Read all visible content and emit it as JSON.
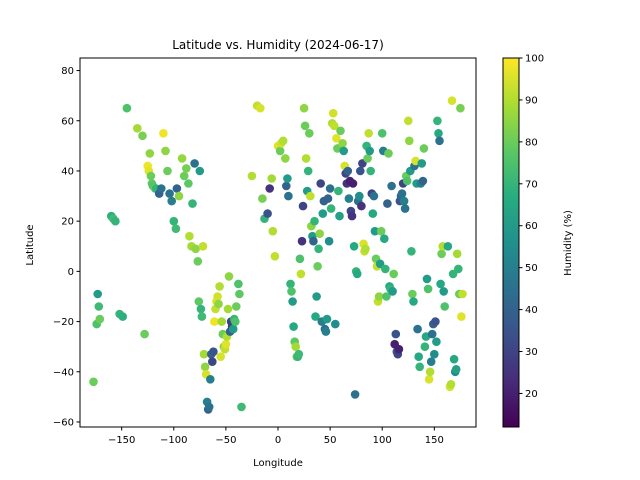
{
  "chart_data": {
    "type": "scatter",
    "title": "Latitude vs. Humidity (2024-06-17)",
    "xlabel": "Longitude",
    "ylabel": "Latitude",
    "xlim": [
      -190,
      190
    ],
    "ylim": [
      -62,
      85
    ],
    "xticks": [
      -150,
      -100,
      -50,
      0,
      50,
      100,
      150
    ],
    "yticks": [
      -60,
      -40,
      -20,
      0,
      20,
      40,
      60,
      80
    ],
    "colorbar": {
      "label": "Humidity (%)",
      "min": 12,
      "max": 100,
      "ticks": [
        20,
        30,
        40,
        50,
        60,
        70,
        80,
        90,
        100
      ],
      "colormap": "viridis"
    },
    "marker": "circle",
    "points": [
      [
        -177,
        -44,
        80
      ],
      [
        -174,
        -21,
        75
      ],
      [
        -173,
        -9,
        60
      ],
      [
        -172,
        -14,
        72
      ],
      [
        -171,
        -19,
        80
      ],
      [
        -160,
        22,
        68
      ],
      [
        -158,
        21,
        72
      ],
      [
        -156,
        20,
        70
      ],
      [
        -152,
        -17,
        70
      ],
      [
        -149,
        -18,
        68
      ],
      [
        -145,
        65,
        75
      ],
      [
        -135,
        57,
        88
      ],
      [
        -130,
        54,
        82
      ],
      [
        -128,
        -25,
        80
      ],
      [
        -125,
        42,
        98
      ],
      [
        -124,
        40,
        96
      ],
      [
        -123,
        47,
        85
      ],
      [
        -122,
        38,
        80
      ],
      [
        -121,
        35,
        78
      ],
      [
        -120,
        34,
        76
      ],
      [
        -118,
        33,
        80
      ],
      [
        -117,
        33,
        70
      ],
      [
        -114,
        31,
        40
      ],
      [
        -112,
        33,
        45
      ],
      [
        -110,
        55,
        98
      ],
      [
        -108,
        48,
        85
      ],
      [
        -106,
        40,
        80
      ],
      [
        -104,
        31,
        45
      ],
      [
        -102,
        28,
        50
      ],
      [
        -100,
        20,
        70
      ],
      [
        -98,
        17,
        72
      ],
      [
        -97,
        33,
        40
      ],
      [
        -95,
        30,
        85
      ],
      [
        -92,
        45,
        86
      ],
      [
        -90,
        38,
        80
      ],
      [
        -88,
        41,
        82
      ],
      [
        -86,
        35,
        78
      ],
      [
        -85,
        14,
        90
      ],
      [
        -83,
        10,
        88
      ],
      [
        -82,
        27,
        70
      ],
      [
        -80,
        43,
        45
      ],
      [
        -79,
        9,
        85
      ],
      [
        -77,
        4,
        80
      ],
      [
        -76,
        -12,
        78
      ],
      [
        -75,
        40,
        60
      ],
      [
        -74,
        -15,
        70
      ],
      [
        -73,
        -18,
        72
      ],
      [
        -72,
        10,
        92
      ],
      [
        -71,
        -33,
        88
      ],
      [
        -70,
        -38,
        85
      ],
      [
        -69,
        -41,
        95
      ],
      [
        -68,
        -52,
        50
      ],
      [
        -67,
        -55,
        40
      ],
      [
        -66,
        -54,
        45
      ],
      [
        -65,
        -43,
        50
      ],
      [
        -64,
        -33,
        40
      ],
      [
        -63,
        -36,
        30
      ],
      [
        -62,
        -32,
        35
      ],
      [
        -61,
        -20,
        98
      ],
      [
        -60,
        -15,
        92
      ],
      [
        -59,
        -12,
        95
      ],
      [
        -58,
        -10,
        94
      ],
      [
        -57,
        -13,
        85
      ],
      [
        -56,
        -6,
        90
      ],
      [
        -55,
        -34,
        95
      ],
      [
        -54,
        -20,
        88
      ],
      [
        -53,
        -25,
        80
      ],
      [
        -52,
        -30,
        85
      ],
      [
        -51,
        -31,
        92
      ],
      [
        -50,
        -29,
        96
      ],
      [
        -49,
        -26,
        90
      ],
      [
        -48,
        -15,
        88
      ],
      [
        -47,
        -2,
        85
      ],
      [
        -46,
        -24,
        40
      ],
      [
        -45,
        -20,
        30
      ],
      [
        -44,
        -22,
        28
      ],
      [
        -43,
        -23,
        60
      ],
      [
        -42,
        -19,
        70
      ],
      [
        -41,
        -20,
        75
      ],
      [
        -40,
        -14,
        80
      ],
      [
        -38,
        -5,
        75
      ],
      [
        -37,
        -9,
        78
      ],
      [
        -35,
        -54,
        72
      ],
      [
        -25,
        38,
        90
      ],
      [
        -20,
        66,
        92
      ],
      [
        -17,
        65,
        95
      ],
      [
        -15,
        29,
        82
      ],
      [
        -13,
        21,
        70
      ],
      [
        -10,
        23,
        35
      ],
      [
        -8,
        33,
        25
      ],
      [
        -6,
        37,
        88
      ],
      [
        -5,
        16,
        90
      ],
      [
        -3,
        6,
        92
      ],
      [
        0,
        50,
        96
      ],
      [
        2,
        48,
        80
      ],
      [
        3,
        51,
        94
      ],
      [
        5,
        52,
        90
      ],
      [
        7,
        45,
        85
      ],
      [
        8,
        34,
        40
      ],
      [
        9,
        37,
        60
      ],
      [
        10,
        30,
        45
      ],
      [
        12,
        -5,
        70
      ],
      [
        13,
        -8,
        75
      ],
      [
        14,
        -12,
        60
      ],
      [
        15,
        -22,
        65
      ],
      [
        16,
        -28,
        78
      ],
      [
        17,
        -30,
        88
      ],
      [
        18,
        -34,
        80
      ],
      [
        19,
        -34,
        70
      ],
      [
        20,
        -33,
        72
      ],
      [
        21,
        5,
        75
      ],
      [
        22,
        -1,
        92
      ],
      [
        23,
        12,
        25
      ],
      [
        24,
        26,
        30
      ],
      [
        25,
        65,
        85
      ],
      [
        26,
        58,
        80
      ],
      [
        27,
        45,
        90
      ],
      [
        28,
        32,
        60
      ],
      [
        29,
        40,
        70
      ],
      [
        30,
        55,
        80
      ],
      [
        31,
        30,
        92
      ],
      [
        32,
        18,
        85
      ],
      [
        33,
        14,
        60
      ],
      [
        34,
        12,
        40
      ],
      [
        35,
        20,
        70
      ],
      [
        36,
        -18,
        65
      ],
      [
        37,
        -10,
        60
      ],
      [
        38,
        2,
        80
      ],
      [
        39,
        9,
        70
      ],
      [
        40,
        15,
        85
      ],
      [
        41,
        35,
        30
      ],
      [
        42,
        -20,
        50
      ],
      [
        43,
        23,
        60
      ],
      [
        44,
        28,
        40
      ],
      [
        45,
        -23,
        45
      ],
      [
        46,
        -24,
        50
      ],
      [
        47,
        -19,
        60
      ],
      [
        48,
        29,
        40
      ],
      [
        49,
        12,
        55
      ],
      [
        50,
        33,
        45
      ],
      [
        51,
        25,
        70
      ],
      [
        52,
        59,
        90
      ],
      [
        53,
        63,
        94
      ],
      [
        54,
        58,
        92
      ],
      [
        55,
        -21,
        55
      ],
      [
        56,
        53,
        96
      ],
      [
        57,
        49,
        80
      ],
      [
        58,
        32,
        70
      ],
      [
        59,
        22,
        62
      ],
      [
        60,
        56,
        80
      ],
      [
        62,
        51,
        85
      ],
      [
        63,
        48,
        60
      ],
      [
        64,
        42,
        95
      ],
      [
        65,
        39,
        30
      ],
      [
        66,
        35,
        25
      ],
      [
        67,
        40,
        40
      ],
      [
        68,
        29,
        50
      ],
      [
        69,
        36,
        20
      ],
      [
        70,
        24,
        30
      ],
      [
        71,
        22,
        25
      ],
      [
        72,
        35,
        20
      ],
      [
        73,
        10,
        65
      ],
      [
        74,
        -49,
        45
      ],
      [
        75,
        0,
        70
      ],
      [
        76,
        -1,
        65
      ],
      [
        77,
        28,
        45
      ],
      [
        78,
        30,
        55
      ],
      [
        79,
        40,
        35
      ],
      [
        80,
        26,
        25
      ],
      [
        81,
        43,
        30
      ],
      [
        82,
        11,
        95
      ],
      [
        83,
        8,
        92
      ],
      [
        84,
        9,
        90
      ],
      [
        85,
        50,
        70
      ],
      [
        86,
        45,
        80
      ],
      [
        87,
        55,
        92
      ],
      [
        88,
        48,
        60
      ],
      [
        89,
        40,
        70
      ],
      [
        90,
        31,
        30
      ],
      [
        91,
        23,
        65
      ],
      [
        92,
        30,
        45
      ],
      [
        93,
        16,
        60
      ],
      [
        94,
        5,
        80
      ],
      [
        95,
        2,
        92
      ],
      [
        96,
        -12,
        92
      ],
      [
        97,
        -10,
        85
      ],
      [
        98,
        3,
        60
      ],
      [
        99,
        16,
        80
      ],
      [
        100,
        55,
        75
      ],
      [
        101,
        48,
        50
      ],
      [
        102,
        13,
        65
      ],
      [
        103,
        1,
        70
      ],
      [
        104,
        -10,
        75
      ],
      [
        105,
        27,
        40
      ],
      [
        106,
        47,
        80
      ],
      [
        107,
        -6,
        65
      ],
      [
        108,
        -7,
        70
      ],
      [
        109,
        34,
        45
      ],
      [
        110,
        -8,
        60
      ],
      [
        111,
        -1,
        80
      ],
      [
        112,
        -29,
        20
      ],
      [
        113,
        -25,
        35
      ],
      [
        114,
        -32,
        35
      ],
      [
        115,
        -33,
        30
      ],
      [
        116,
        -31,
        20
      ],
      [
        117,
        28,
        35
      ],
      [
        118,
        30,
        40
      ],
      [
        119,
        31,
        45
      ],
      [
        120,
        35,
        30
      ],
      [
        121,
        28,
        50
      ],
      [
        122,
        25,
        45
      ],
      [
        123,
        38,
        80
      ],
      [
        124,
        36,
        75
      ],
      [
        125,
        60,
        92
      ],
      [
        126,
        52,
        85
      ],
      [
        127,
        40,
        60
      ],
      [
        128,
        8,
        70
      ],
      [
        129,
        -9,
        80
      ],
      [
        130,
        -12,
        65
      ],
      [
        131,
        42,
        45
      ],
      [
        132,
        44,
        95
      ],
      [
        133,
        35,
        60
      ],
      [
        134,
        -23,
        45
      ],
      [
        135,
        -34,
        65
      ],
      [
        136,
        -38,
        70
      ],
      [
        137,
        35,
        50
      ],
      [
        138,
        43,
        60
      ],
      [
        139,
        36,
        40
      ],
      [
        140,
        49,
        80
      ],
      [
        141,
        -30,
        70
      ],
      [
        142,
        -26,
        65
      ],
      [
        143,
        -3,
        60
      ],
      [
        144,
        -7,
        75
      ],
      [
        145,
        -43,
        95
      ],
      [
        146,
        -40,
        90
      ],
      [
        147,
        -36,
        50
      ],
      [
        148,
        -25,
        45
      ],
      [
        149,
        -21,
        40
      ],
      [
        150,
        -33,
        55
      ],
      [
        151,
        -20,
        35
      ],
      [
        152,
        -28,
        60
      ],
      [
        153,
        60,
        70
      ],
      [
        154,
        55,
        65
      ],
      [
        155,
        52,
        45
      ],
      [
        156,
        -5,
        65
      ],
      [
        157,
        7,
        80
      ],
      [
        158,
        10,
        90
      ],
      [
        159,
        -8,
        60
      ],
      [
        160,
        -14,
        75
      ],
      [
        163,
        10,
        65
      ],
      [
        165,
        -46,
        95
      ],
      [
        166,
        -45,
        90
      ],
      [
        167,
        68,
        95
      ],
      [
        168,
        -1,
        70
      ],
      [
        169,
        -35,
        65
      ],
      [
        170,
        -40,
        55
      ],
      [
        171,
        -39,
        62
      ],
      [
        172,
        7,
        88
      ],
      [
        173,
        1,
        70
      ],
      [
        174,
        -9,
        80
      ],
      [
        175,
        65,
        82
      ],
      [
        176,
        -18,
        96
      ],
      [
        177,
        -9,
        92
      ]
    ]
  }
}
